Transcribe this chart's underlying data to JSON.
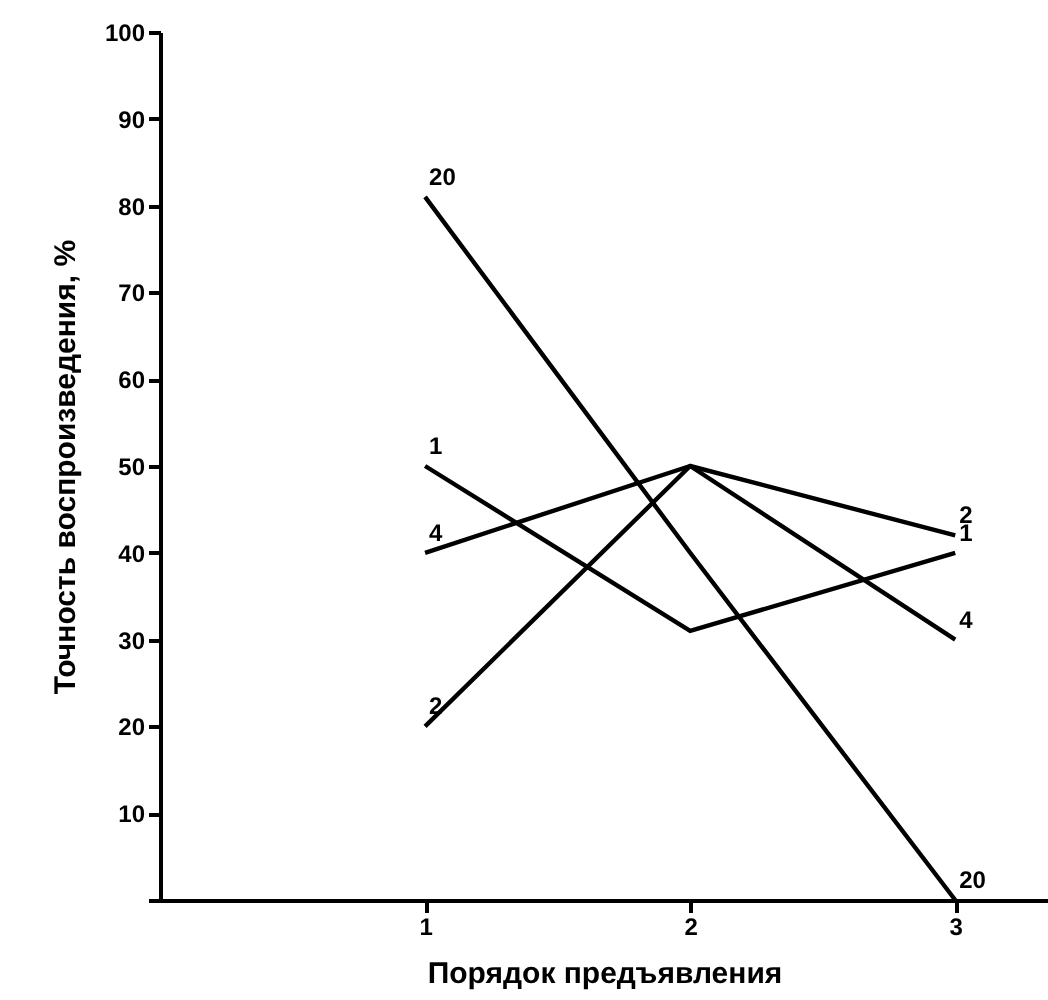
{
  "chart_data": {
    "type": "line",
    "xlabel": "Порядок предъявления",
    "ylabel": "Точность воспроизведения, %",
    "x": [
      1,
      2,
      3
    ],
    "xlim": [
      0,
      3.35
    ],
    "xticks": [
      1,
      2,
      3
    ],
    "ylim": [
      0,
      100
    ],
    "yticks": [
      {
        "value": 0,
        "label": null
      },
      10,
      20,
      30,
      40,
      50,
      60,
      70,
      80,
      90,
      100
    ],
    "grid": false,
    "marker": "none",
    "line_style": "solid",
    "series": [
      {
        "name": "20",
        "color": "#000000",
        "values": [
          81,
          40,
          0
        ]
      },
      {
        "name": "1",
        "color": "#000000",
        "values": [
          50,
          31,
          40
        ]
      },
      {
        "name": "2",
        "color": "#000000",
        "values": [
          20,
          50,
          42
        ]
      },
      {
        "name": "4",
        "color": "#000000",
        "values": [
          40,
          50,
          30
        ]
      }
    ]
  }
}
